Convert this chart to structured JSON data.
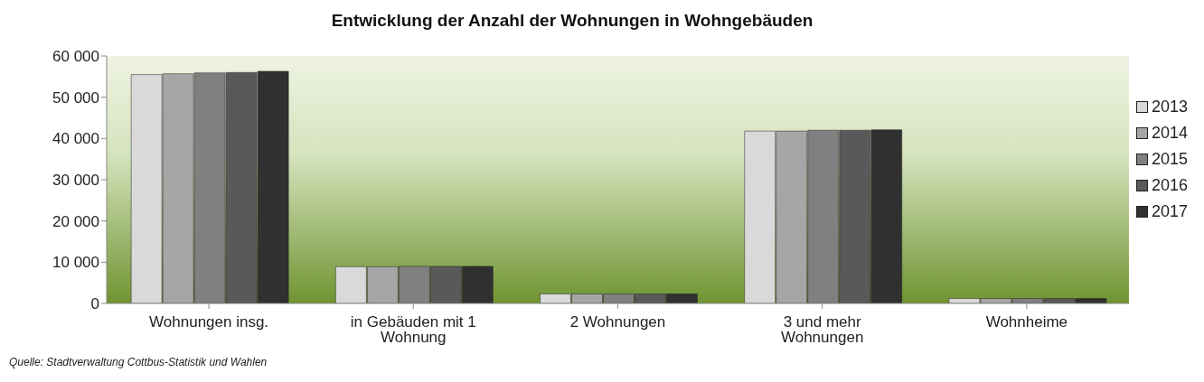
{
  "chart_data": {
    "type": "bar",
    "title": "Entwicklung der Anzahl der Wohnungen in Wohngebäuden",
    "categories": [
      "Wohnungen insg.",
      "in Gebäuden mit 1 Wohnung",
      "2 Wohnungen",
      "3 und mehr Wohnungen",
      "Wohnheime"
    ],
    "series": [
      {
        "name": "2013",
        "color": "#d9d9d9",
        "values": [
          55500,
          8900,
          2300,
          41800,
          1200
        ]
      },
      {
        "name": "2014",
        "color": "#a6a6a6",
        "values": [
          55700,
          8900,
          2300,
          41800,
          1200
        ]
      },
      {
        "name": "2015",
        "color": "#808080",
        "values": [
          55900,
          9000,
          2300,
          42000,
          1200
        ]
      },
      {
        "name": "2016",
        "color": "#595959",
        "values": [
          56000,
          9000,
          2300,
          42000,
          1200
        ]
      },
      {
        "name": "2017",
        "color": "#303030",
        "values": [
          56300,
          9000,
          2300,
          42100,
          1200
        ]
      }
    ],
    "ylim": [
      0,
      60000
    ],
    "yticks": [
      {
        "value": 0,
        "label": "0"
      },
      {
        "value": 10000,
        "label": "10 000"
      },
      {
        "value": 20000,
        "label": "20 000"
      },
      {
        "value": 30000,
        "label": "30 000"
      },
      {
        "value": 40000,
        "label": "40 000"
      },
      {
        "value": 50000,
        "label": "50 000"
      },
      {
        "value": 60000,
        "label": "60 000"
      }
    ],
    "legend": "right",
    "annotations": [
      "Quelle: Stadtverwaltung Cottbus-Statistik und Wahlen"
    ]
  }
}
